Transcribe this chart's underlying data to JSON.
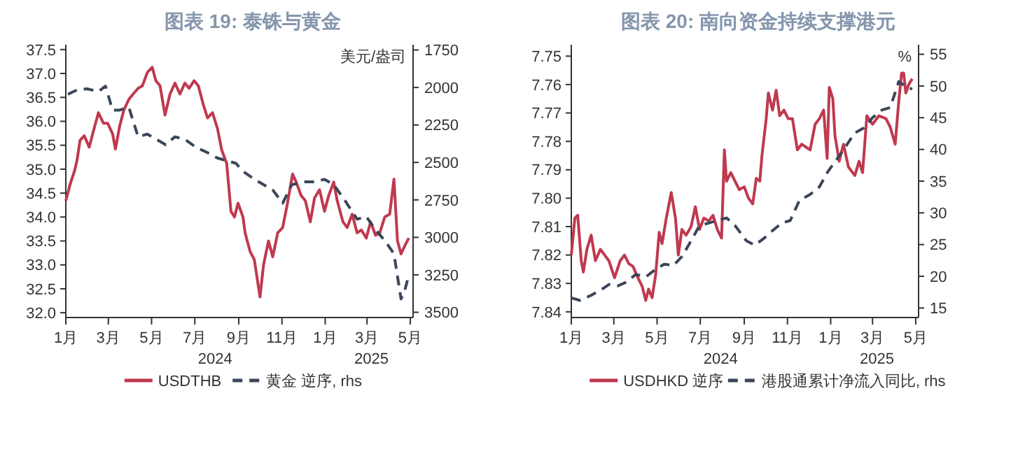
{
  "chart_data": [
    {
      "type": "line",
      "title": "图表 19: 泰铢与黄金",
      "y2label": "美元/盎司",
      "legend": "bottom",
      "grid": false,
      "xlim": [
        "2024-01-01",
        "2025-05-05"
      ],
      "xticks": [
        {
          "value": "2024-01-01",
          "label": "1月"
        },
        {
          "value": "2024-03-01",
          "label": "3月"
        },
        {
          "value": "2024-05-01",
          "label": "5月"
        },
        {
          "value": "2024-07-01",
          "label": "7月"
        },
        {
          "value": "2024-09-01",
          "label": "9月"
        },
        {
          "value": "2024-11-01",
          "label": "11月"
        },
        {
          "value": "2025-01-01",
          "label": "1月"
        },
        {
          "value": "2025-03-01",
          "label": "3月"
        },
        {
          "value": "2025-05-01",
          "label": "5月"
        }
      ],
      "ylim": [
        31.9,
        37.6
      ],
      "yticks": [
        {
          "value": 32,
          "label": "32.0"
        },
        32.5,
        {
          "value": 33,
          "label": "33.0"
        },
        33.5,
        {
          "value": 34,
          "label": "34.0"
        },
        34.5,
        {
          "value": 35,
          "label": "35.0"
        },
        35.5,
        {
          "value": 36,
          "label": "36.0"
        },
        36.5,
        {
          "value": 37,
          "label": "37.0"
        },
        37.5
      ],
      "y2lim": [
        3535,
        1715
      ],
      "y2ticks": [
        1750,
        2000,
        2250,
        2500,
        2750,
        3000,
        3250,
        3500
      ],
      "annotations": [
        "2024",
        "2025"
      ],
      "series": [
        {
          "name": "USDTHB",
          "color": "#c0394f",
          "line_style": "solid",
          "x": [
            "2024-01-01",
            "2024-01-07",
            "2024-01-14",
            "2024-01-17",
            "2024-01-21",
            "2024-01-27",
            "2024-02-03",
            "2024-02-09",
            "2024-02-16",
            "2024-02-23",
            "2024-02-29",
            "2024-03-07",
            "2024-03-11",
            "2024-03-17",
            "2024-03-23",
            "2024-03-30",
            "2024-04-05",
            "2024-04-12",
            "2024-04-18",
            "2024-04-25",
            "2024-05-02",
            "2024-05-07",
            "2024-05-13",
            "2024-05-20",
            "2024-05-27",
            "2024-06-03",
            "2024-06-10",
            "2024-06-17",
            "2024-06-23",
            "2024-06-30",
            "2024-07-06",
            "2024-07-13",
            "2024-07-19",
            "2024-07-26",
            "2024-08-02",
            "2024-08-08",
            "2024-08-15",
            "2024-08-21",
            "2024-08-26",
            "2024-08-31",
            "2024-09-07",
            "2024-09-10",
            "2024-09-17",
            "2024-09-23",
            "2024-10-01",
            "2024-10-06",
            "2024-10-13",
            "2024-10-19",
            "2024-10-26",
            "2024-11-02",
            "2024-11-08",
            "2024-11-16",
            "2024-11-21",
            "2024-11-28",
            "2024-12-04",
            "2024-12-11",
            "2024-12-17",
            "2024-12-24",
            "2024-12-31",
            "2025-01-06",
            "2025-01-13",
            "2025-01-18",
            "2025-01-26",
            "2025-02-01",
            "2025-02-08",
            "2025-02-15",
            "2025-02-21",
            "2025-02-28",
            "2025-03-06",
            "2025-03-13",
            "2025-03-19",
            "2025-03-26",
            "2025-04-02",
            "2025-04-08",
            "2025-04-13",
            "2025-04-18",
            "2025-04-25",
            "2025-04-29"
          ],
          "values": [
            34.34,
            34.68,
            35.0,
            35.2,
            35.6,
            35.7,
            35.46,
            35.8,
            36.18,
            35.96,
            35.96,
            35.74,
            35.42,
            35.9,
            36.24,
            36.46,
            36.57,
            36.69,
            36.74,
            37.02,
            37.13,
            36.85,
            36.74,
            36.13,
            36.57,
            36.8,
            36.57,
            36.8,
            36.69,
            36.85,
            36.74,
            36.35,
            36.07,
            36.18,
            35.85,
            35.4,
            35.12,
            34.12,
            34.0,
            34.29,
            34.0,
            33.67,
            33.28,
            33.11,
            32.33,
            33.0,
            33.5,
            33.17,
            33.67,
            33.78,
            34.23,
            34.9,
            34.73,
            34.45,
            34.34,
            33.9,
            34.4,
            34.57,
            34.12,
            34.45,
            34.73,
            34.34,
            33.9,
            33.78,
            34.06,
            33.67,
            33.73,
            33.56,
            33.9,
            33.62,
            33.67,
            34.0,
            34.06,
            34.79,
            33.5,
            33.23,
            33.45,
            33.56
          ]
        },
        {
          "name": "黄金 逆序, rhs",
          "color": "#3b4658",
          "line_style": "dashed",
          "axis": "y2",
          "x": [
            "2024-01-04",
            "2024-01-17",
            "2024-01-31",
            "2024-02-16",
            "2024-02-26",
            "2024-03-07",
            "2024-03-17",
            "2024-03-30",
            "2024-04-12",
            "2024-04-25",
            "2024-05-08",
            "2024-05-21",
            "2024-06-03",
            "2024-06-17",
            "2024-07-03",
            "2024-07-19",
            "2024-08-02",
            "2024-08-15",
            "2024-08-28",
            "2024-09-07",
            "2024-09-23",
            "2024-10-06",
            "2024-10-19",
            "2024-11-02",
            "2024-11-15",
            "2024-12-04",
            "2024-12-17",
            "2024-12-31",
            "2025-01-13",
            "2025-01-29",
            "2025-02-15",
            "2025-02-28",
            "2025-03-13",
            "2025-03-26",
            "2025-04-08",
            "2025-04-18",
            "2025-04-23",
            "2025-04-28"
          ],
          "values": [
            2045,
            2016,
            2009,
            2027,
            1991,
            2151,
            2151,
            2133,
            2329,
            2311,
            2346,
            2382,
            2329,
            2346,
            2400,
            2435,
            2471,
            2488,
            2506,
            2559,
            2613,
            2648,
            2684,
            2772,
            2648,
            2630,
            2630,
            2613,
            2648,
            2755,
            2879,
            2861,
            2950,
            3021,
            3110,
            3411,
            3358,
            3269
          ]
        }
      ]
    },
    {
      "type": "line",
      "title": "图表 20: 南向资金持续支撑港元",
      "y2label": "%",
      "legend": "bottom",
      "grid": false,
      "xlim": [
        "2024-01-01",
        "2025-05-05"
      ],
      "xticks": [
        {
          "value": "2024-01-01",
          "label": "1月"
        },
        {
          "value": "2024-03-01",
          "label": "3月"
        },
        {
          "value": "2024-05-01",
          "label": "5月"
        },
        {
          "value": "2024-07-01",
          "label": "7月"
        },
        {
          "value": "2024-09-01",
          "label": "9月"
        },
        {
          "value": "2024-11-01",
          "label": "11月"
        },
        {
          "value": "2025-01-01",
          "label": "1月"
        },
        {
          "value": "2025-03-01",
          "label": "3月"
        },
        {
          "value": "2025-05-01",
          "label": "5月"
        }
      ],
      "ylim": [
        7.842,
        7.746
      ],
      "yticks": [
        7.75,
        7.76,
        7.77,
        7.78,
        7.79,
        {
          "value": 7.8,
          "label": "7.80"
        },
        7.81,
        7.82,
        7.83,
        7.84
      ],
      "y2lim": [
        13.5,
        56.5
      ],
      "y2ticks": [
        15,
        20,
        25,
        30,
        35,
        40,
        45,
        50,
        55
      ],
      "annotations": [
        "2024",
        "2025"
      ],
      "series": [
        {
          "name": "USDHKD 逆序",
          "color": "#c0394f",
          "line_style": "solid",
          "x": [
            "2024-01-01",
            "2024-01-06",
            "2024-01-10",
            "2024-01-15",
            "2024-01-18",
            "2024-01-23",
            "2024-01-29",
            "2024-02-04",
            "2024-02-11",
            "2024-02-17",
            "2024-02-23",
            "2024-03-02",
            "2024-03-10",
            "2024-03-16",
            "2024-03-22",
            "2024-03-28",
            "2024-04-04",
            "2024-04-10",
            "2024-04-15",
            "2024-04-19",
            "2024-04-24",
            "2024-04-29",
            "2024-05-04",
            "2024-05-08",
            "2024-05-14",
            "2024-05-21",
            "2024-05-27",
            "2024-05-31",
            "2024-06-05",
            "2024-06-11",
            "2024-06-18",
            "2024-06-24",
            "2024-06-30",
            "2024-07-06",
            "2024-07-13",
            "2024-07-19",
            "2024-07-25",
            "2024-07-31",
            "2024-08-04",
            "2024-08-07",
            "2024-08-13",
            "2024-08-19",
            "2024-08-25",
            "2024-09-01",
            "2024-09-07",
            "2024-09-13",
            "2024-09-18",
            "2024-09-23",
            "2024-09-26",
            "2024-10-02",
            "2024-10-05",
            "2024-10-11",
            "2024-10-16",
            "2024-10-21",
            "2024-10-27",
            "2024-11-02",
            "2024-11-08",
            "2024-11-15",
            "2024-11-21",
            "2024-11-27",
            "2024-12-03",
            "2024-12-10",
            "2024-12-16",
            "2024-12-22",
            "2024-12-27",
            "2024-12-30",
            "2025-01-04",
            "2025-01-07",
            "2025-01-13",
            "2025-01-19",
            "2025-01-26",
            "2025-02-04",
            "2025-02-10",
            "2025-02-15",
            "2025-02-21",
            "2025-03-01",
            "2025-03-10",
            "2025-03-20",
            "2025-03-26",
            "2025-04-02",
            "2025-04-07",
            "2025-04-11",
            "2025-04-14",
            "2025-04-17",
            "2025-04-21",
            "2025-04-26"
          ],
          "values": [
            7.82,
            7.807,
            7.806,
            7.822,
            7.826,
            7.818,
            7.813,
            7.822,
            7.818,
            7.82,
            7.822,
            7.828,
            7.822,
            7.82,
            7.823,
            7.824,
            7.828,
            7.831,
            7.836,
            7.832,
            7.835,
            7.827,
            7.812,
            7.816,
            7.807,
            7.798,
            7.807,
            7.82,
            7.811,
            7.813,
            7.81,
            7.803,
            7.811,
            7.807,
            7.808,
            7.806,
            7.811,
            7.814,
            7.783,
            7.794,
            7.791,
            7.794,
            7.797,
            7.796,
            7.8,
            7.802,
            7.793,
            7.794,
            7.785,
            7.772,
            7.763,
            7.769,
            7.762,
            7.771,
            7.769,
            7.772,
            7.772,
            7.783,
            7.781,
            7.782,
            7.783,
            7.774,
            7.772,
            7.769,
            7.786,
            7.761,
            7.765,
            7.778,
            7.787,
            7.781,
            7.789,
            7.792,
            7.787,
            7.791,
            7.771,
            7.774,
            7.771,
            7.772,
            7.775,
            7.781,
            7.766,
            7.756,
            7.756,
            7.763,
            7.76,
            7.758
          ]
        },
        {
          "name": "港股通累计净流入同比, rhs",
          "color": "#3b4658",
          "line_style": "dashed",
          "axis": "y2",
          "x": [
            "2024-01-01",
            "2024-01-13",
            "2024-01-29",
            "2024-02-11",
            "2024-02-23",
            "2024-03-07",
            "2024-03-19",
            "2024-04-01",
            "2024-04-15",
            "2024-04-29",
            "2024-05-11",
            "2024-05-24",
            "2024-06-05",
            "2024-06-18",
            "2024-06-30",
            "2024-07-13",
            "2024-07-25",
            "2024-08-07",
            "2024-08-19",
            "2024-09-04",
            "2024-09-16",
            "2024-09-29",
            "2024-10-11",
            "2024-10-24",
            "2024-11-05",
            "2024-11-18",
            "2024-12-03",
            "2024-12-16",
            "2024-12-28",
            "2025-01-10",
            "2025-01-23",
            "2025-02-04",
            "2025-02-17",
            "2025-03-01",
            "2025-03-14",
            "2025-03-26",
            "2025-04-07",
            "2025-04-17",
            "2025-04-26"
          ],
          "values": [
            16.6,
            16.2,
            17.0,
            17.8,
            18.7,
            18.5,
            19.1,
            20.3,
            19.9,
            21.1,
            21.9,
            21.7,
            23.1,
            25.6,
            28.0,
            28.4,
            28.8,
            29.2,
            28.0,
            25.6,
            24.9,
            26.0,
            27.2,
            28.4,
            28.8,
            32.0,
            32.9,
            34.1,
            36.5,
            38.5,
            40.6,
            42.6,
            43.4,
            45.0,
            46.2,
            46.6,
            50.7,
            49.9,
            49.5
          ]
        }
      ]
    }
  ]
}
